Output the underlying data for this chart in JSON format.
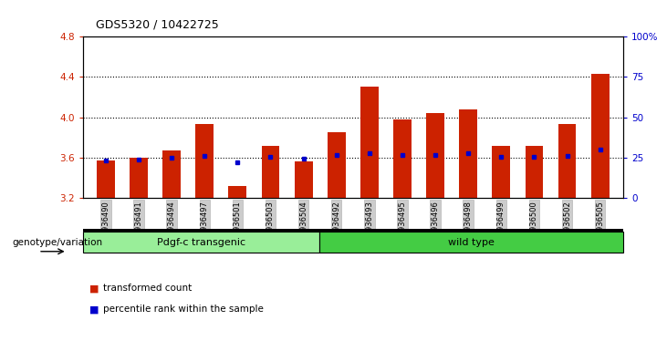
{
  "title": "GDS5320 / 10422725",
  "samples": [
    "GSM936490",
    "GSM936491",
    "GSM936494",
    "GSM936497",
    "GSM936501",
    "GSM936503",
    "GSM936504",
    "GSM936492",
    "GSM936493",
    "GSM936495",
    "GSM936496",
    "GSM936498",
    "GSM936499",
    "GSM936500",
    "GSM936502",
    "GSM936505"
  ],
  "bar_values": [
    3.57,
    3.6,
    3.67,
    3.93,
    3.32,
    3.72,
    3.56,
    3.85,
    4.3,
    3.98,
    4.04,
    4.08,
    3.72,
    3.72,
    3.93,
    4.43
  ],
  "blue_dot_values": [
    3.57,
    3.58,
    3.6,
    3.62,
    3.55,
    3.61,
    3.59,
    3.63,
    3.64,
    3.63,
    3.63,
    3.64,
    3.61,
    3.61,
    3.62,
    3.68
  ],
  "bar_bottom": 3.2,
  "ylim_left": [
    3.2,
    4.8
  ],
  "ylim_right": [
    0,
    100
  ],
  "yticks_left": [
    3.2,
    3.6,
    4.0,
    4.4,
    4.8
  ],
  "yticks_right": [
    0,
    25,
    50,
    75,
    100
  ],
  "bar_color": "#cc2200",
  "dot_color": "#0000cc",
  "transgenic_count": 7,
  "wild_count": 9,
  "transgenic_label": "Pdgf-c transgenic",
  "transgenic_color": "#99ee99",
  "wild_label": "wild type",
  "wild_color": "#44cc44",
  "group_label": "genotype/variation",
  "legend_items": [
    {
      "color": "#cc2200",
      "label": "transformed count"
    },
    {
      "color": "#0000cc",
      "label": "percentile rank within the sample"
    }
  ],
  "bg_color": "#ffffff",
  "tick_label_color_left": "#cc2200",
  "tick_label_color_right": "#0000cc",
  "xticklabel_bg": "#cccccc"
}
